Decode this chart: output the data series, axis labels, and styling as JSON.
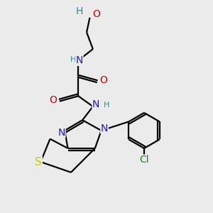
{
  "bg_color": "#ebebeb",
  "atom_colors": {
    "C": "#000000",
    "N": "#1a1acc",
    "O": "#cc0000",
    "S": "#cccc00",
    "H": "#2a8a8a",
    "Cl": "#228822"
  },
  "bond_color": "#000000",
  "bond_width": 1.6,
  "font_size_atom": 10,
  "font_size_small": 8
}
